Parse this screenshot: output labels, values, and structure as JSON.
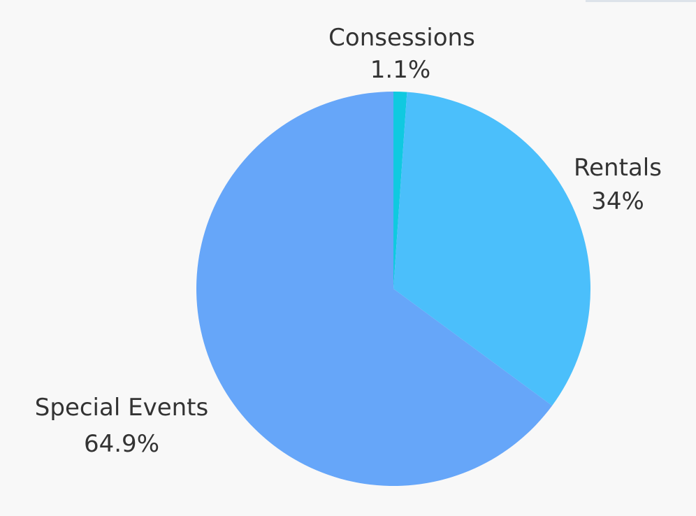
{
  "chart_data": {
    "type": "pie",
    "slices": [
      {
        "name": "Consessions",
        "value": 1.1,
        "label": "1.1%",
        "color": "#10c9e0"
      },
      {
        "name": "Rentals",
        "value": 34,
        "label": "34%",
        "color": "#4bbffb"
      },
      {
        "name": "Special Events",
        "value": 64.9,
        "label": "64.9%",
        "color": "#66a6f9"
      }
    ],
    "start_angle_deg": 0,
    "direction": "clockwise"
  }
}
